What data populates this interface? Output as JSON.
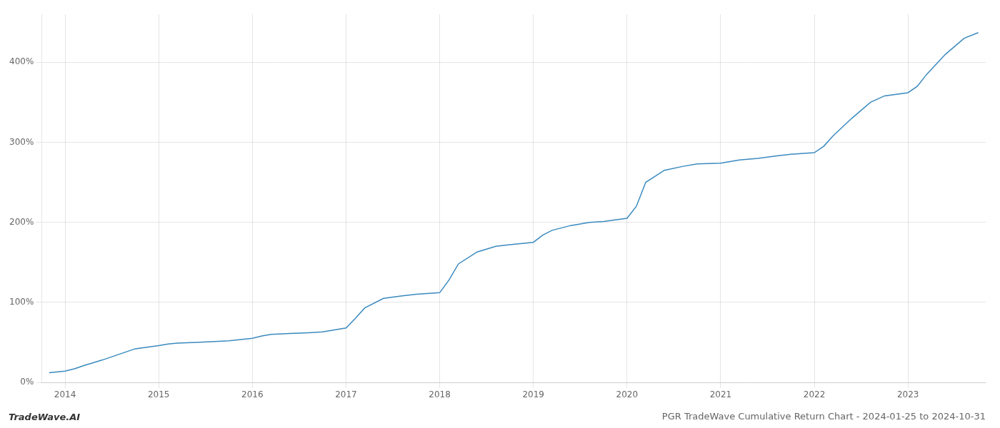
{
  "chart_data": {
    "type": "line",
    "title": "PGR TradeWave Cumulative Return Chart - 2024-01-25 to 2024-10-31",
    "annotations": [
      "TradeWave.AI"
    ],
    "color": "#3a8abf",
    "grid": true,
    "xlim": [
      2013.75,
      2023.83
    ],
    "ylim": [
      0,
      460
    ],
    "xticks": [
      2014,
      2015,
      2016,
      2017,
      2018,
      2019,
      2020,
      2021,
      2022,
      2023
    ],
    "yticks": [
      {
        "value": 0,
        "label": "0%"
      },
      {
        "value": 100,
        "label": "100%"
      },
      {
        "value": 200,
        "label": "200%"
      },
      {
        "value": 300,
        "label": "300%"
      },
      {
        "value": 400,
        "label": "400%"
      }
    ],
    "x": [
      2013.83,
      2014.0,
      2014.1,
      2014.2,
      2014.4,
      2014.6,
      2014.75,
      2015.0,
      2015.1,
      2015.2,
      2015.4,
      2015.6,
      2015.75,
      2016.0,
      2016.1,
      2016.2,
      2016.4,
      2016.6,
      2016.75,
      2017.0,
      2017.1,
      2017.2,
      2017.4,
      2017.6,
      2017.75,
      2018.0,
      2018.1,
      2018.2,
      2018.4,
      2018.6,
      2018.75,
      2019.0,
      2019.1,
      2019.2,
      2019.4,
      2019.6,
      2019.75,
      2020.0,
      2020.1,
      2020.2,
      2020.4,
      2020.6,
      2020.75,
      2021.0,
      2021.1,
      2021.2,
      2021.4,
      2021.6,
      2021.75,
      2022.0,
      2022.1,
      2022.2,
      2022.4,
      2022.6,
      2022.75,
      2023.0,
      2023.1,
      2023.2,
      2023.4,
      2023.6,
      2023.75
    ],
    "values": [
      12,
      14,
      17,
      21,
      28,
      36,
      42,
      46,
      48,
      49,
      50,
      51,
      52,
      55,
      58,
      60,
      61,
      62,
      63,
      68,
      80,
      93,
      105,
      108,
      110,
      112,
      128,
      148,
      163,
      170,
      172,
      175,
      184,
      190,
      196,
      200,
      201,
      205,
      220,
      250,
      265,
      270,
      273,
      274,
      276,
      278,
      280,
      283,
      285,
      287,
      295,
      308,
      330,
      350,
      358,
      362,
      370,
      385,
      410,
      430,
      437
    ]
  }
}
